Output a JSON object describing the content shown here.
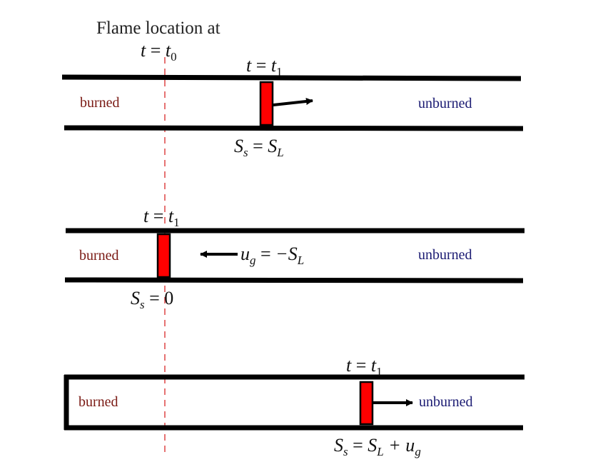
{
  "header": {
    "title": "Flame location at",
    "t0_label": {
      "var": "t",
      "eq": " = ",
      "rhs": "t",
      "sub": "0"
    }
  },
  "colors": {
    "flame": "#ff0000",
    "wall": "#000000",
    "reference_line": "#e05050",
    "burned_text": "#7a1a14",
    "unburned_text": "#1a1a72"
  },
  "panels": [
    {
      "id": "top",
      "burned_label": "burned",
      "unburned_label": "unburned",
      "time_label": {
        "var": "t",
        "eq": " = ",
        "rhs": "t",
        "sub": "1"
      },
      "speed_label": {
        "lhs": "S",
        "lhs_sub": "s",
        "eq": " = ",
        "rhs": "S",
        "rhs_sub": "L",
        "tail": ""
      },
      "arrow_direction": "right"
    },
    {
      "id": "middle",
      "burned_label": "burned",
      "unburned_label": "unburned",
      "time_label": {
        "var": "t",
        "eq": " = ",
        "rhs": "t",
        "sub": "1"
      },
      "speed_label": {
        "lhs": "S",
        "lhs_sub": "s",
        "eq": " = ",
        "rhs": "0",
        "rhs_sub": "",
        "tail": ""
      },
      "gas_label": {
        "lhs": "u",
        "lhs_sub": "g",
        "eq": " = ",
        "rhs": "−S",
        "rhs_sub": "L"
      },
      "arrow_direction": "left"
    },
    {
      "id": "bottom",
      "burned_label": "burned",
      "unburned_label": "unburned",
      "time_label": {
        "var": "t",
        "eq": " = ",
        "rhs": "t",
        "sub": "1"
      },
      "speed_label": {
        "lhs": "S",
        "lhs_sub": "s",
        "eq": " = ",
        "rhs": "S",
        "rhs_sub": "L",
        "tail": " + u",
        "tail_sub": "g"
      },
      "arrow_direction": "right",
      "closed_left_end": true
    }
  ]
}
